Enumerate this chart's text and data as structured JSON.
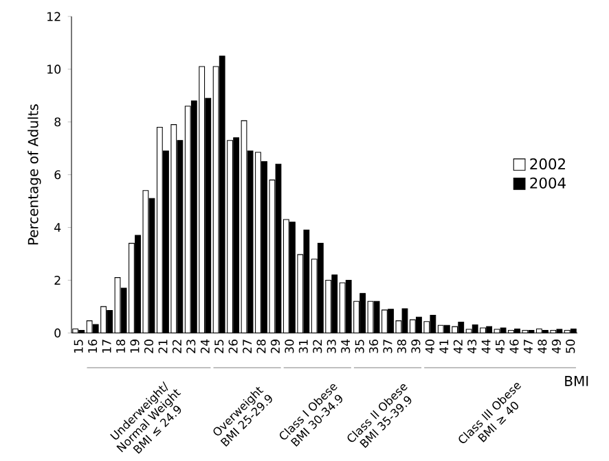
{
  "chart_data": {
    "type": "bar",
    "categories": [
      "15",
      "16",
      "17",
      "18",
      "19",
      "20",
      "21",
      "22",
      "23",
      "24",
      "25",
      "26",
      "27",
      "28",
      "29",
      "30",
      "31",
      "32",
      "33",
      "34",
      "35",
      "36",
      "37",
      "38",
      "39",
      "40",
      "41",
      "42",
      "43",
      "44",
      "45",
      "46",
      "47",
      "48",
      "49",
      "50"
    ],
    "series": [
      {
        "name": "2002",
        "color": "#ffffff",
        "values": [
          0.15,
          0.46,
          1.0,
          2.1,
          3.4,
          5.4,
          7.8,
          7.9,
          8.6,
          10.1,
          10.1,
          7.3,
          8.05,
          6.85,
          5.8,
          4.3,
          2.97,
          2.8,
          2.0,
          1.9,
          1.2,
          1.2,
          0.87,
          0.46,
          0.5,
          0.43,
          0.29,
          0.24,
          0.14,
          0.19,
          0.14,
          0.1,
          0.1,
          0.15,
          0.1,
          0.1
        ]
      },
      {
        "name": "2004",
        "color": "#000000",
        "values": [
          0.1,
          0.32,
          0.85,
          1.7,
          3.7,
          5.1,
          6.9,
          7.3,
          8.8,
          8.9,
          10.5,
          7.4,
          6.9,
          6.5,
          6.4,
          4.2,
          3.9,
          3.4,
          2.2,
          2.0,
          1.5,
          1.2,
          0.9,
          0.92,
          0.6,
          0.67,
          0.29,
          0.41,
          0.31,
          0.24,
          0.19,
          0.15,
          0.1,
          0.1,
          0.14,
          0.15
        ]
      }
    ],
    "xlabel": "BMI",
    "ylabel": "Percentage of Adults",
    "ylim": [
      0,
      12
    ],
    "yticks": [
      0,
      2,
      4,
      6,
      8,
      10,
      12
    ],
    "legend": "right",
    "annotations": [
      "Underweight/ Normal Weight BMI ≤ 24.9",
      "Overweight BMI 25-29.9",
      "Class I Obese BMI 30-34.9",
      "Class II Obese BMI 35-39.9",
      "Class III Obese BMI ≥ 40"
    ]
  }
}
